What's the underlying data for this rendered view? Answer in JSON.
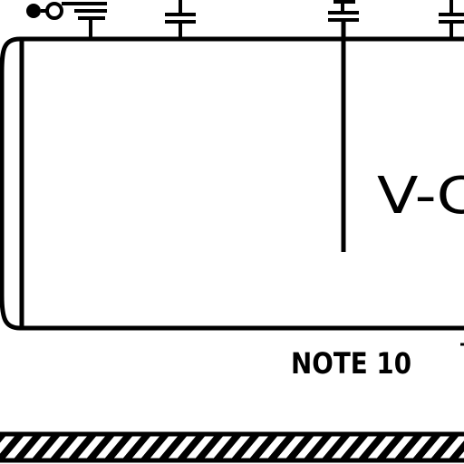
{
  "drawing": {
    "vessel_tag": "V-C",
    "note_label": "NOTE 10",
    "stroke_color": "#000000",
    "background_color": "#ffffff",
    "elements": [
      "vessel-shell",
      "left-head",
      "nozzle-flanges",
      "dip-pipe",
      "instrument-bubbles",
      "ground-hatch"
    ]
  }
}
